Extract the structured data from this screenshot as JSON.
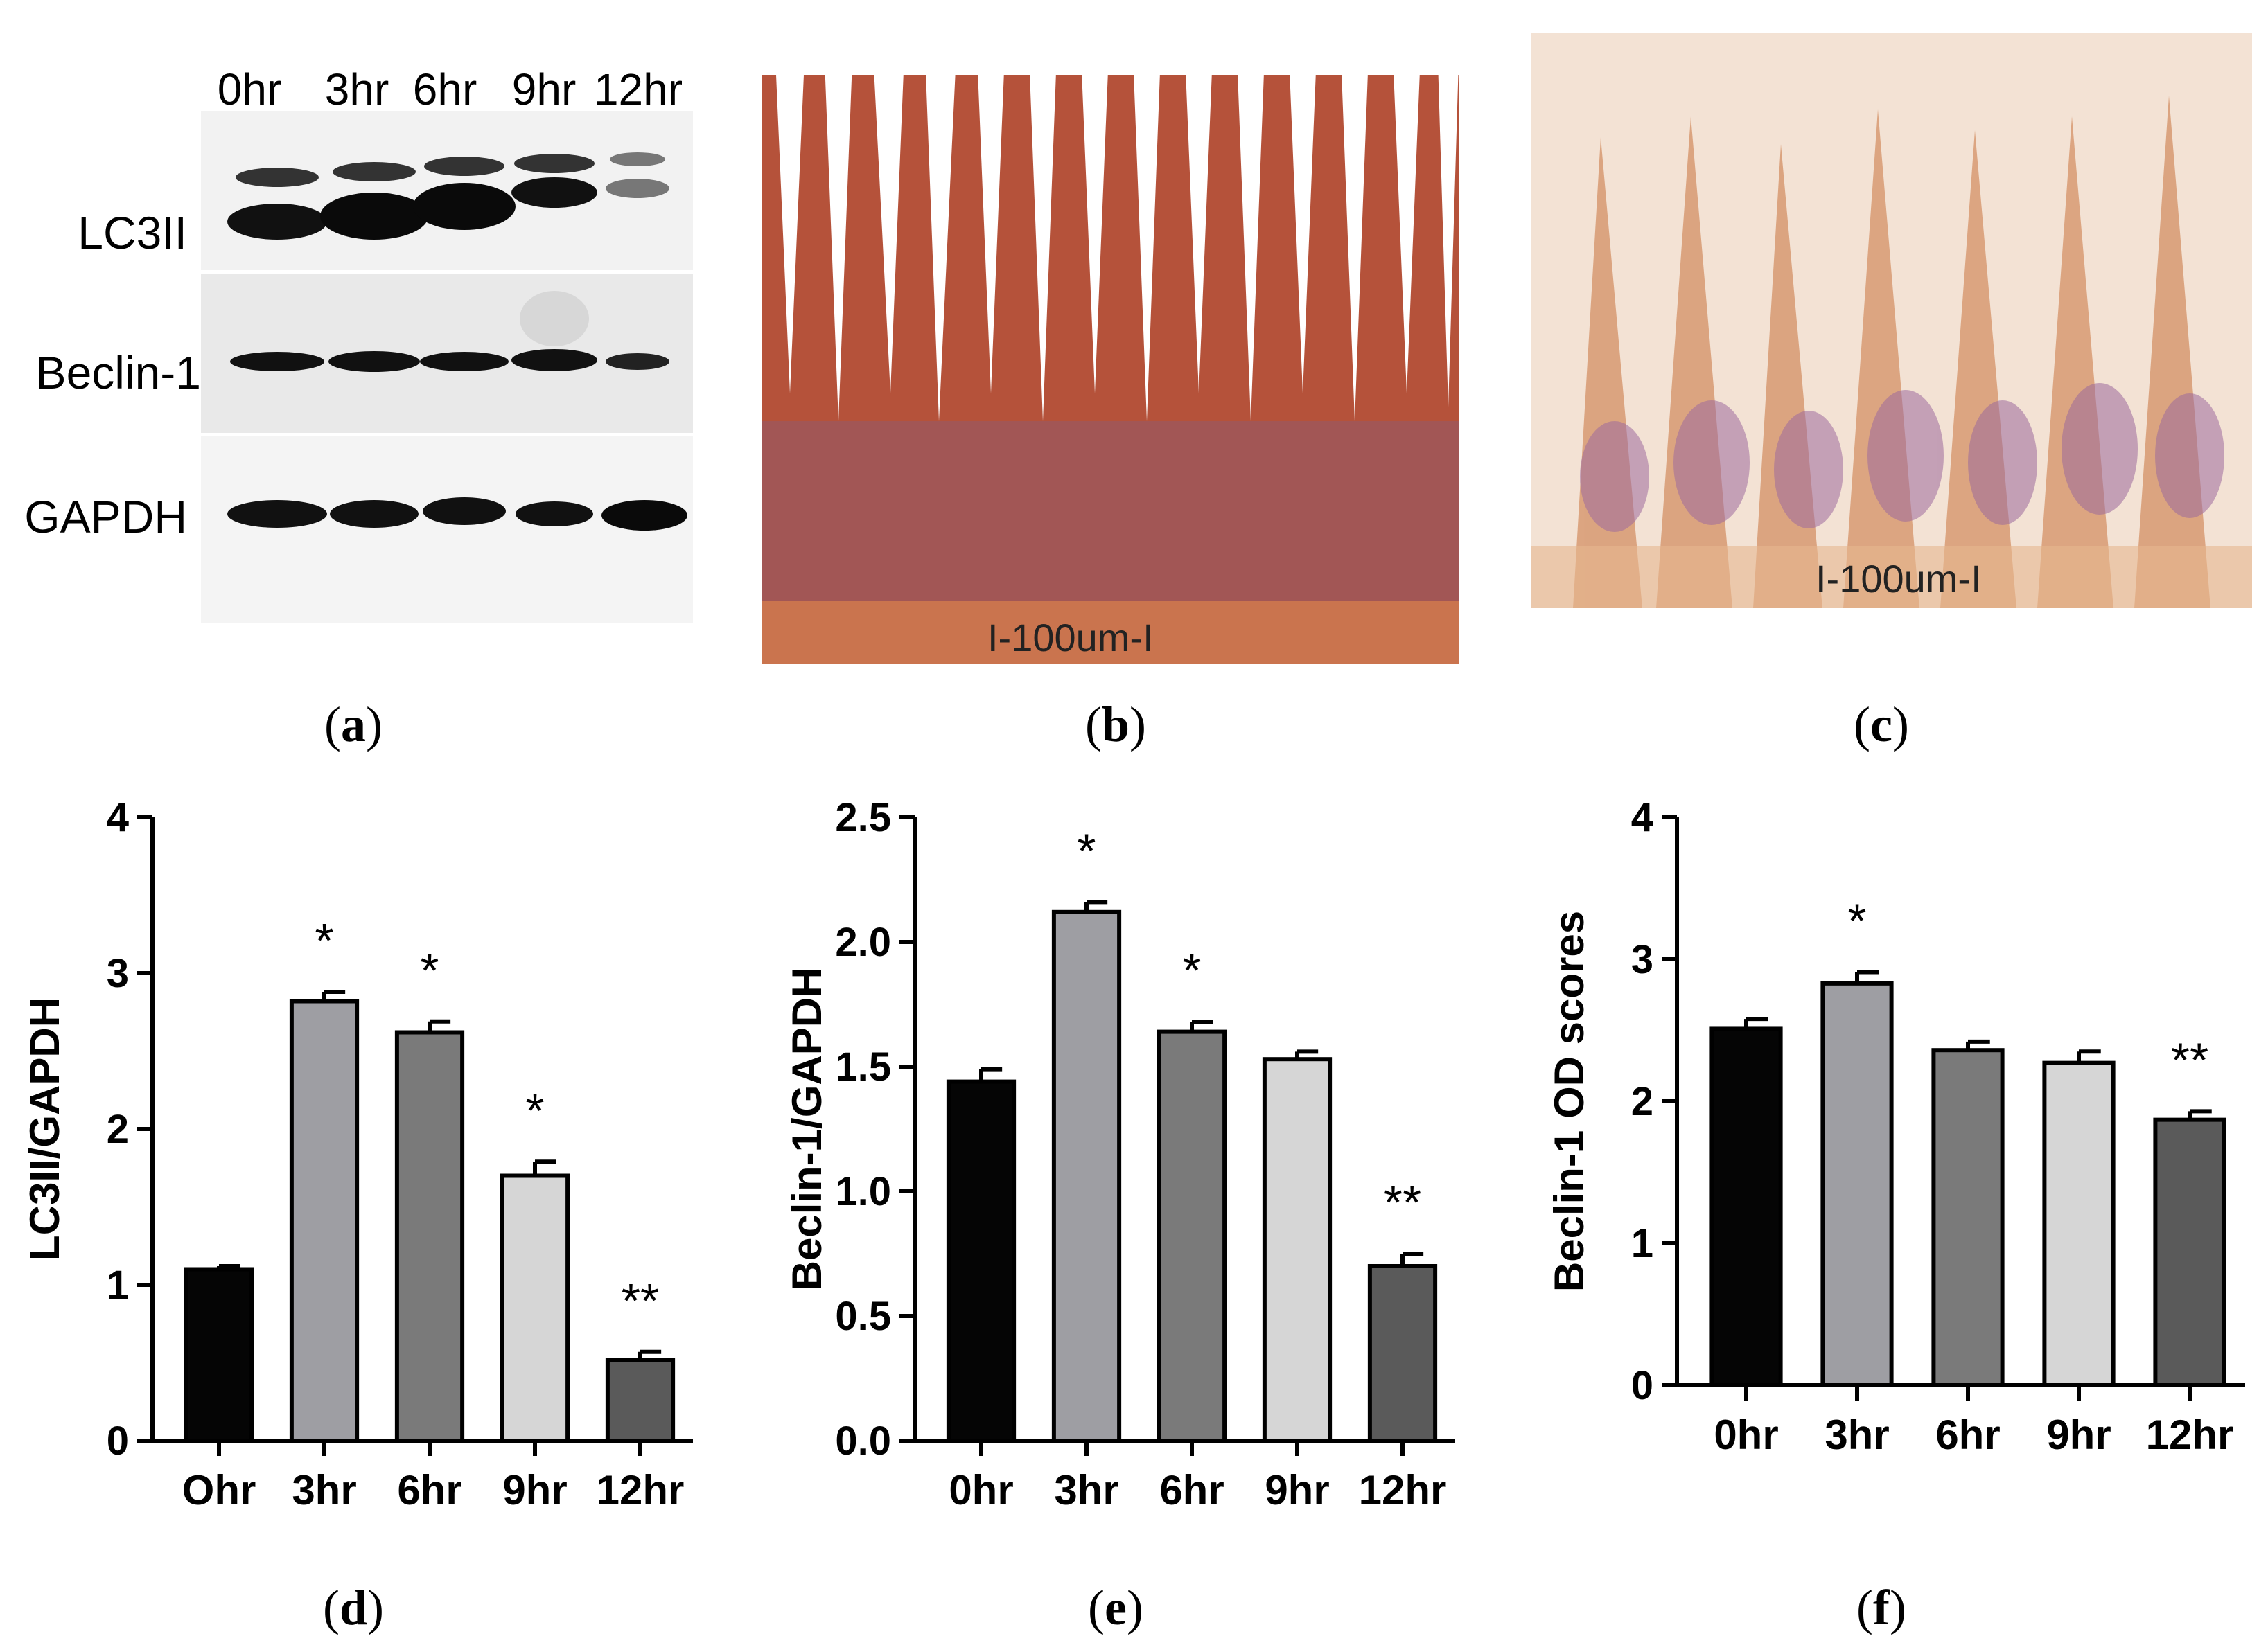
{
  "panel_labels": [
    "a",
    "b",
    "c",
    "d",
    "e",
    "f"
  ],
  "western_blot": {
    "lanes": [
      "0hr",
      "3hr",
      "6hr",
      "9hr",
      "12hr"
    ],
    "rows": [
      "LC3II",
      "Beclin-1",
      "GAPDH"
    ],
    "colors": {
      "band": "#111111",
      "membrane": "#ececec"
    }
  },
  "histology": {
    "b": {
      "scale_label": "I-100um-I",
      "stain_color": "#b5523a"
    },
    "c": {
      "scale_label": "I-100um-I",
      "stain_color": "#c98a6a"
    }
  },
  "chart_data": [
    {
      "id": "d",
      "type": "bar",
      "categories": [
        "Ohr",
        "3hr",
        "6hr",
        "9hr",
        "12hr"
      ],
      "values": [
        1.1,
        2.82,
        2.62,
        1.7,
        0.52
      ],
      "errors": [
        0.02,
        0.06,
        0.07,
        0.09,
        0.05
      ],
      "significance": [
        "",
        "*",
        "*",
        "*",
        "**"
      ],
      "ylabel": "LC3II/GAPDH",
      "xlabel": "",
      "ylim": [
        0,
        4
      ],
      "yticks": [
        0,
        1,
        2,
        3,
        4
      ],
      "ytick_labels": [
        "0",
        "1",
        "2",
        "3",
        "4"
      ],
      "bar_colors": [
        "#050505",
        "#9e9ea3",
        "#7a7a7a",
        "#d6d6d6",
        "#5a5a5a"
      ]
    },
    {
      "id": "e",
      "type": "bar",
      "categories": [
        "0hr",
        "3hr",
        "6hr",
        "9hr",
        "12hr"
      ],
      "values": [
        1.44,
        2.12,
        1.64,
        1.53,
        0.7
      ],
      "errors": [
        0.05,
        0.04,
        0.04,
        0.03,
        0.05
      ],
      "significance": [
        "",
        "*",
        "*",
        "",
        "**"
      ],
      "ylabel": "Beclin-1/GAPDH",
      "xlabel": "",
      "ylim": [
        0,
        2.5
      ],
      "yticks": [
        0,
        0.5,
        1.0,
        1.5,
        2.0,
        2.5
      ],
      "ytick_labels": [
        "0.0",
        "0.5",
        "1.0",
        "1.5",
        "2.0",
        "2.5"
      ],
      "bar_colors": [
        "#050505",
        "#9e9ea3",
        "#7a7a7a",
        "#d6d6d6",
        "#5a5a5a"
      ]
    },
    {
      "id": "f",
      "type": "bar",
      "categories": [
        "0hr",
        "3hr",
        "6hr",
        "9hr",
        "12hr"
      ],
      "values": [
        2.51,
        2.83,
        2.36,
        2.27,
        1.87
      ],
      "errors": [
        0.07,
        0.08,
        0.06,
        0.08,
        0.06
      ],
      "significance": [
        "",
        "*",
        "",
        "",
        "**"
      ],
      "ylabel": "Beclin-1 OD scores",
      "xlabel": "",
      "ylim": [
        0,
        4
      ],
      "yticks": [
        0,
        1,
        2,
        3,
        4
      ],
      "ytick_labels": [
        "0",
        "1",
        "2",
        "3",
        "4"
      ],
      "bar_colors": [
        "#050505",
        "#9e9ea3",
        "#7a7a7a",
        "#d6d6d6",
        "#5a5a5a"
      ]
    }
  ]
}
